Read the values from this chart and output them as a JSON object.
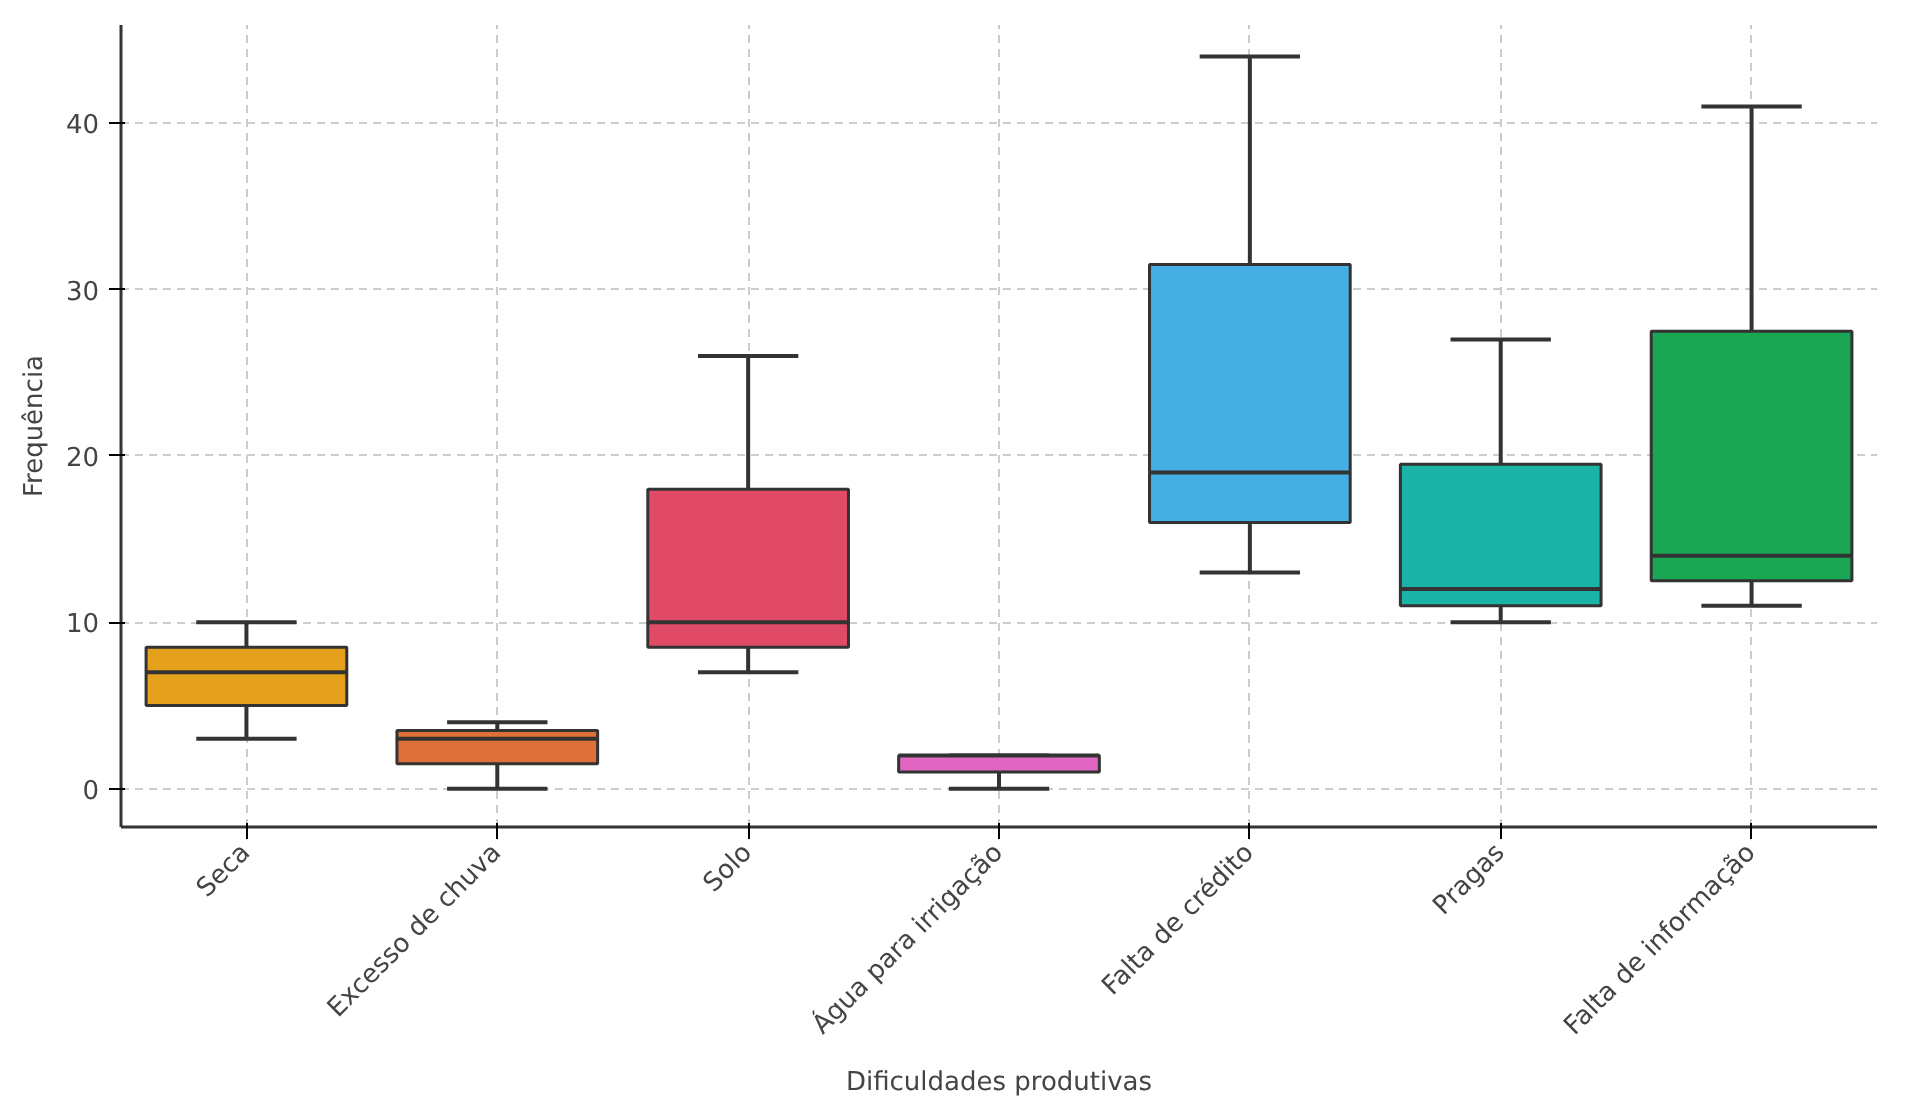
{
  "chart_data": {
    "type": "box",
    "xlabel": "Dificuldades produtivas",
    "ylabel": "Frequência",
    "categories": [
      "Seca",
      "Excesso de chuva",
      "Solo",
      "Água para irrigação",
      "Falta de crédito",
      "Pragas",
      "Falta de informação"
    ],
    "colors": [
      "#e6a11c",
      "#e0703a",
      "#e04a66",
      "#e066c2",
      "#45aee3",
      "#1ab3a6",
      "#1aa653"
    ],
    "boxes": [
      {
        "low": 3,
        "q1": 5,
        "median": 7,
        "q3": 8.5,
        "high": 10
      },
      {
        "low": 0,
        "q1": 1.5,
        "median": 3,
        "q3": 3.5,
        "high": 4
      },
      {
        "low": 7,
        "q1": 8.5,
        "median": 10,
        "q3": 18,
        "high": 26
      },
      {
        "low": 0,
        "q1": 1,
        "median": 2,
        "q3": 2,
        "high": 2
      },
      {
        "low": 13,
        "q1": 16,
        "median": 19,
        "q3": 31.5,
        "high": 44
      },
      {
        "low": 10,
        "q1": 11,
        "median": 12,
        "q3": 19.5,
        "high": 27
      },
      {
        "low": 11,
        "q1": 12.5,
        "median": 14,
        "q3": 27.5,
        "high": 41
      }
    ],
    "ylim": [
      -2.3,
      45.9
    ],
    "yticks": [
      0,
      10,
      20,
      30,
      40
    ],
    "grid": true
  }
}
